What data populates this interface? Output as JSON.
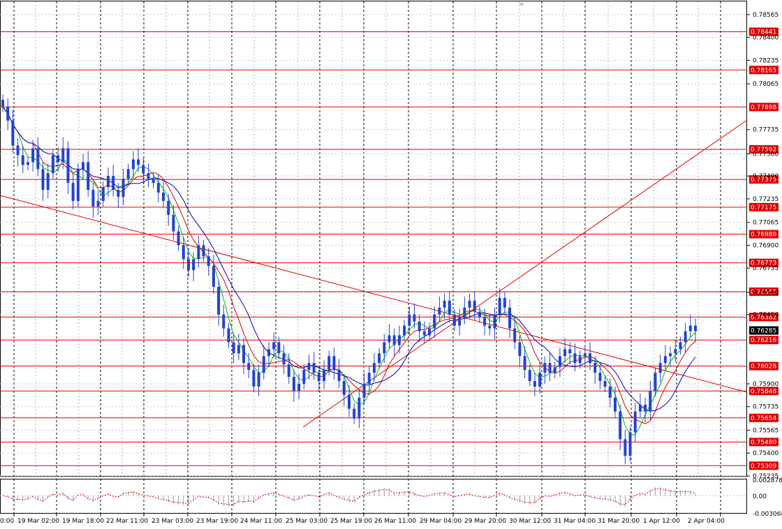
{
  "chart_data": {
    "type": "candlestick",
    "symbol_hidden": true,
    "ylim": [
      0.75235,
      0.7866
    ],
    "y_ticks": [
      "0.78565",
      "0.78400",
      "0.78235",
      "0.78065",
      "0.77735",
      "0.77560",
      "0.77400",
      "0.77235",
      "0.77065",
      "0.76900",
      "0.76735",
      "0.76560",
      "0.76400",
      "0.75900",
      "0.75735",
      "0.75565",
      "0.75400",
      "0.75235"
    ],
    "levels": [
      "0.78441",
      "0.78165",
      "0.77898",
      "0.77592",
      "0.77375",
      "0.77175",
      "0.76980",
      "0.76773",
      "0.76565",
      "0.76382",
      "0.76216",
      "0.76028",
      "0.75848",
      "0.75654",
      "0.75480",
      "0.75309"
    ],
    "current_price": "0.76285",
    "x_labels": [
      "0:00",
      "19 Mar 02:00",
      "19 Mar 18:00",
      "22 Mar 11:00",
      "23 Mar 03:00",
      "23 Mar 19:00",
      "24 Mar 11:00",
      "25 Mar 03:00",
      "25 Mar 19:00",
      "26 Mar 11:00",
      "29 Mar 04:00",
      "29 Mar 20:00",
      "30 Mar 12:00",
      "31 Mar 04:00",
      "31 Mar 20:00",
      "1 Apr 12:00",
      "2 Apr 04:00"
    ],
    "close_series": [
      0.779,
      0.778,
      0.7762,
      0.7755,
      0.7748,
      0.775,
      0.776,
      0.7745,
      0.773,
      0.7742,
      0.7755,
      0.775,
      0.776,
      0.7735,
      0.7722,
      0.7745,
      0.775,
      0.773,
      0.7718,
      0.7722,
      0.7732,
      0.774,
      0.773,
      0.7725,
      0.7738,
      0.7745,
      0.7752,
      0.7748,
      0.7742,
      0.7738,
      0.7735,
      0.7728,
      0.7722,
      0.7712,
      0.77,
      0.769,
      0.768,
      0.7672,
      0.768,
      0.769,
      0.7682,
      0.7675,
      0.766,
      0.764,
      0.763,
      0.762,
      0.7612,
      0.7618,
      0.7605,
      0.76,
      0.7588,
      0.7598,
      0.761,
      0.7615,
      0.762,
      0.7612,
      0.7604,
      0.7595,
      0.7585,
      0.759,
      0.76,
      0.7605,
      0.7598,
      0.7592,
      0.76,
      0.761,
      0.76,
      0.7592,
      0.7582,
      0.7572,
      0.7565,
      0.758,
      0.759,
      0.7598,
      0.7605,
      0.7612,
      0.762,
      0.7625,
      0.7618,
      0.7625,
      0.7632,
      0.764,
      0.7635,
      0.7628,
      0.7625,
      0.763,
      0.764,
      0.7645,
      0.765,
      0.764,
      0.7632,
      0.7638,
      0.7645,
      0.765,
      0.7642,
      0.7638,
      0.7632,
      0.763,
      0.764,
      0.7652,
      0.7645,
      0.763,
      0.762,
      0.761,
      0.76,
      0.7592,
      0.7588,
      0.7598,
      0.7605,
      0.7598,
      0.7602,
      0.761,
      0.7615,
      0.7612,
      0.7605,
      0.761,
      0.7612,
      0.7605,
      0.7598,
      0.7592,
      0.7588,
      0.758,
      0.757,
      0.755,
      0.7538,
      0.7555,
      0.757,
      0.7575,
      0.757,
      0.7585,
      0.7598,
      0.7605,
      0.761,
      0.7612,
      0.7615,
      0.762,
      0.7628,
      0.7632,
      0.7628
    ],
    "indicators": [
      "moving average (green)",
      "moving average (red)",
      "moving average (blue)"
    ],
    "oscillator_ticks": [
      "0.002878",
      "0.00",
      "-0.003068"
    ],
    "trendlines": "two red trend lines",
    "grid": true
  }
}
